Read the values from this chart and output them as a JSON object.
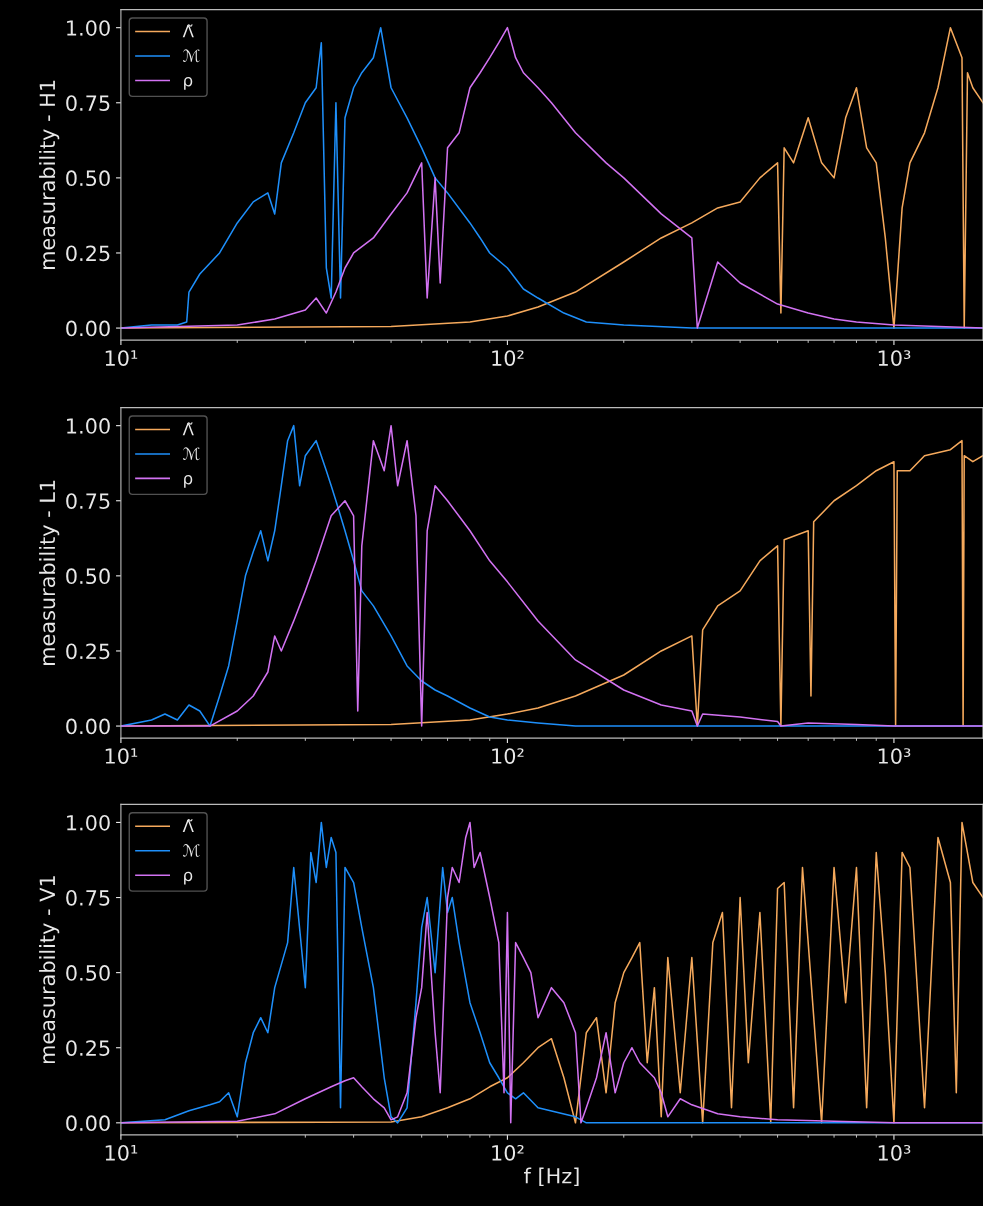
{
  "chart_data": [
    {
      "type": "line",
      "ylabel": "measurability - H1",
      "legend": "top left",
      "log": "x",
      "xlim": [
        10,
        1700
      ],
      "xticks": [
        {
          "value": 10,
          "label": "10¹"
        },
        {
          "value": 100,
          "label": "10²"
        },
        {
          "value": 1000,
          "label": "10³"
        }
      ],
      "ylim": [
        -0.04,
        1.06
      ],
      "yticks": [
        {
          "value": 0,
          "label": "0.00"
        },
        {
          "value": 0.25,
          "label": "0.25"
        },
        {
          "value": 0.5,
          "label": "0.50"
        },
        {
          "value": 0.75,
          "label": "0.75"
        },
        {
          "value": 1,
          "label": "1.00"
        }
      ],
      "series": [
        {
          "name": "Λ̃",
          "color": "#f5a95c",
          "x": [
            10,
            50,
            80,
            100,
            120,
            150,
            200,
            250,
            300,
            350,
            400,
            450,
            500,
            510,
            520,
            550,
            600,
            650,
            700,
            750,
            800,
            850,
            900,
            950,
            1000,
            1050,
            1100,
            1200,
            1300,
            1400,
            1500,
            1520,
            1550,
            1600,
            1700
          ],
          "values": [
            0,
            0.005,
            0.02,
            0.04,
            0.07,
            0.12,
            0.22,
            0.3,
            0.35,
            0.4,
            0.42,
            0.5,
            0.55,
            0.05,
            0.6,
            0.55,
            0.7,
            0.55,
            0.5,
            0.7,
            0.8,
            0.6,
            0.55,
            0.3,
            0,
            0.4,
            0.55,
            0.65,
            0.8,
            1.0,
            0.9,
            0,
            0.85,
            0.8,
            0.75
          ]
        },
        {
          "name": "ℳ",
          "color": "#1e8ffa",
          "x": [
            10,
            12,
            14,
            14.8,
            15,
            16,
            18,
            20,
            22,
            24,
            25,
            26,
            28,
            30,
            32,
            33,
            34,
            35,
            36,
            37,
            38,
            40,
            42,
            45,
            47,
            50,
            55,
            60,
            65,
            70,
            80,
            85,
            90,
            100,
            110,
            120,
            140,
            160,
            200,
            300,
            1700
          ],
          "values": [
            0,
            0.01,
            0.01,
            0.02,
            0.12,
            0.18,
            0.25,
            0.35,
            0.42,
            0.45,
            0.38,
            0.55,
            0.65,
            0.75,
            0.8,
            0.95,
            0.2,
            0.1,
            0.75,
            0.1,
            0.7,
            0.8,
            0.85,
            0.9,
            1.0,
            0.8,
            0.7,
            0.6,
            0.5,
            0.45,
            0.35,
            0.3,
            0.25,
            0.2,
            0.13,
            0.1,
            0.05,
            0.02,
            0.01,
            0,
            0
          ]
        },
        {
          "name": "ρ",
          "color": "#d272f2",
          "x": [
            10,
            20,
            25,
            30,
            32,
            34,
            36,
            38,
            40,
            45,
            50,
            55,
            60,
            62,
            65,
            67,
            70,
            75,
            80,
            85,
            90,
            95,
            100,
            105,
            110,
            120,
            130,
            150,
            180,
            200,
            250,
            300,
            310,
            350,
            400,
            500,
            600,
            700,
            800,
            1000,
            1700
          ],
          "values": [
            0,
            0.01,
            0.03,
            0.06,
            0.1,
            0.05,
            0.12,
            0.2,
            0.25,
            0.3,
            0.38,
            0.45,
            0.55,
            0.1,
            0.5,
            0.15,
            0.6,
            0.65,
            0.8,
            0.85,
            0.9,
            0.95,
            1.0,
            0.9,
            0.85,
            0.8,
            0.75,
            0.65,
            0.55,
            0.5,
            0.38,
            0.3,
            0.0,
            0.22,
            0.15,
            0.08,
            0.05,
            0.03,
            0.02,
            0.01,
            0
          ]
        }
      ]
    },
    {
      "type": "line",
      "ylabel": "measurability - L1",
      "legend": "top left",
      "log": "x",
      "xlim": [
        10,
        1700
      ],
      "xticks": [
        {
          "value": 10,
          "label": "10¹"
        },
        {
          "value": 100,
          "label": "10²"
        },
        {
          "value": 1000,
          "label": "10³"
        }
      ],
      "ylim": [
        -0.04,
        1.06
      ],
      "yticks": [
        {
          "value": 0,
          "label": "0.00"
        },
        {
          "value": 0.25,
          "label": "0.25"
        },
        {
          "value": 0.5,
          "label": "0.50"
        },
        {
          "value": 0.75,
          "label": "0.75"
        },
        {
          "value": 1,
          "label": "1.00"
        }
      ],
      "series": [
        {
          "name": "Λ̃",
          "color": "#f5a95c",
          "x": [
            10,
            50,
            80,
            100,
            120,
            150,
            200,
            250,
            300,
            310,
            320,
            350,
            400,
            450,
            500,
            510,
            520,
            600,
            610,
            620,
            700,
            800,
            900,
            1000,
            1010,
            1020,
            1100,
            1200,
            1400,
            1500,
            1510,
            1520,
            1600,
            1700
          ],
          "values": [
            0,
            0.005,
            0.02,
            0.04,
            0.06,
            0.1,
            0.17,
            0.25,
            0.3,
            0.0,
            0.32,
            0.4,
            0.45,
            0.55,
            0.6,
            0.0,
            0.62,
            0.65,
            0.1,
            0.68,
            0.75,
            0.8,
            0.85,
            0.88,
            0.0,
            0.85,
            0.85,
            0.9,
            0.92,
            0.95,
            0.0,
            0.9,
            0.88,
            0.9
          ]
        },
        {
          "name": "ℳ",
          "color": "#1e8ffa",
          "x": [
            10,
            12,
            13,
            14,
            15,
            16,
            17,
            18,
            19,
            20,
            21,
            22,
            23,
            24,
            25,
            26,
            27,
            28,
            29,
            30,
            32,
            34,
            35,
            36,
            38,
            40,
            42,
            45,
            50,
            55,
            60,
            65,
            70,
            80,
            90,
            100,
            120,
            150,
            1700
          ],
          "values": [
            0,
            0.02,
            0.04,
            0.02,
            0.07,
            0.05,
            0.0,
            0.1,
            0.2,
            0.35,
            0.5,
            0.58,
            0.65,
            0.55,
            0.65,
            0.8,
            0.95,
            1.0,
            0.8,
            0.9,
            0.95,
            0.85,
            0.8,
            0.75,
            0.65,
            0.55,
            0.45,
            0.4,
            0.3,
            0.2,
            0.15,
            0.12,
            0.1,
            0.06,
            0.03,
            0.02,
            0.01,
            0,
            0
          ]
        },
        {
          "name": "ρ",
          "color": "#d272f2",
          "x": [
            10,
            17,
            20,
            22,
            24,
            25,
            26,
            28,
            30,
            32,
            35,
            38,
            40,
            41,
            42,
            45,
            48,
            50,
            52,
            55,
            58,
            60,
            62,
            65,
            70,
            80,
            90,
            100,
            120,
            150,
            200,
            250,
            300,
            310,
            320,
            400,
            500,
            510,
            600,
            800,
            1000,
            1700
          ],
          "values": [
            0,
            0,
            0.05,
            0.1,
            0.18,
            0.3,
            0.25,
            0.35,
            0.45,
            0.55,
            0.7,
            0.75,
            0.7,
            0.05,
            0.6,
            0.95,
            0.85,
            1.0,
            0.8,
            0.95,
            0.7,
            0.0,
            0.65,
            0.8,
            0.75,
            0.65,
            0.55,
            0.48,
            0.35,
            0.22,
            0.12,
            0.07,
            0.05,
            0.0,
            0.04,
            0.03,
            0.015,
            0,
            0.01,
            0.005,
            0,
            0
          ]
        }
      ]
    },
    {
      "type": "line",
      "ylabel": "measurability - V1",
      "xlabel": "f [Hz]",
      "legend": "top left",
      "log": "x",
      "xlim": [
        10,
        1700
      ],
      "xticks": [
        {
          "value": 10,
          "label": "10¹"
        },
        {
          "value": 100,
          "label": "10²"
        },
        {
          "value": 1000,
          "label": "10³"
        }
      ],
      "ylim": [
        -0.04,
        1.06
      ],
      "yticks": [
        {
          "value": 0,
          "label": "0.00"
        },
        {
          "value": 0.25,
          "label": "0.25"
        },
        {
          "value": 0.5,
          "label": "0.50"
        },
        {
          "value": 0.75,
          "label": "0.75"
        },
        {
          "value": 1,
          "label": "1.00"
        }
      ],
      "series": [
        {
          "name": "Λ̃",
          "color": "#f5a95c",
          "x": [
            10,
            50,
            60,
            70,
            80,
            90,
            100,
            110,
            120,
            130,
            140,
            150,
            160,
            170,
            180,
            190,
            200,
            210,
            220,
            230,
            240,
            250,
            260,
            280,
            300,
            320,
            340,
            360,
            380,
            400,
            420,
            450,
            480,
            500,
            520,
            550,
            580,
            600,
            650,
            700,
            750,
            800,
            850,
            900,
            950,
            1000,
            1050,
            1100,
            1200,
            1300,
            1400,
            1450,
            1500,
            1600,
            1700
          ],
          "values": [
            0,
            0.003,
            0.02,
            0.05,
            0.08,
            0.12,
            0.15,
            0.2,
            0.25,
            0.28,
            0.15,
            0.0,
            0.3,
            0.35,
            0.1,
            0.4,
            0.5,
            0.55,
            0.6,
            0.2,
            0.45,
            0.02,
            0.55,
            0.1,
            0.55,
            0.0,
            0.6,
            0.7,
            0.05,
            0.75,
            0.2,
            0.7,
            0.0,
            0.78,
            0.8,
            0.05,
            0.85,
            0.6,
            0.0,
            0.85,
            0.4,
            0.85,
            0.05,
            0.9,
            0.5,
            0.0,
            0.9,
            0.85,
            0.05,
            0.95,
            0.8,
            0.1,
            1.0,
            0.8,
            0.75
          ]
        },
        {
          "name": "ℳ",
          "color": "#1e8ffa",
          "x": [
            10,
            13,
            15,
            17,
            18,
            19,
            20,
            21,
            22,
            23,
            24,
            25,
            27,
            28,
            30,
            31,
            32,
            33,
            34,
            35,
            36,
            37,
            38,
            40,
            42,
            45,
            48,
            50,
            52,
            55,
            58,
            60,
            62,
            65,
            68,
            70,
            72,
            75,
            80,
            85,
            90,
            95,
            100,
            105,
            110,
            120,
            150,
            160,
            1700
          ],
          "values": [
            0,
            0.01,
            0.04,
            0.06,
            0.07,
            0.1,
            0.02,
            0.2,
            0.3,
            0.35,
            0.3,
            0.45,
            0.6,
            0.85,
            0.45,
            0.9,
            0.8,
            1.0,
            0.85,
            0.95,
            0.9,
            0.05,
            0.85,
            0.8,
            0.65,
            0.45,
            0.15,
            0.02,
            0.0,
            0.05,
            0.4,
            0.65,
            0.75,
            0.5,
            0.85,
            0.7,
            0.75,
            0.6,
            0.4,
            0.3,
            0.2,
            0.15,
            0.1,
            0.08,
            0.1,
            0.05,
            0.02,
            0.0,
            0
          ]
        },
        {
          "name": "ρ",
          "color": "#d272f2",
          "x": [
            10,
            20,
            25,
            30,
            35,
            38,
            40,
            42,
            45,
            48,
            50,
            52,
            55,
            58,
            60,
            62,
            65,
            67,
            70,
            72,
            75,
            78,
            80,
            82,
            85,
            90,
            95,
            98,
            100,
            102,
            105,
            110,
            115,
            120,
            130,
            140,
            150,
            155,
            160,
            170,
            180,
            190,
            200,
            210,
            220,
            240,
            250,
            260,
            280,
            300,
            350,
            400,
            500,
            700,
            1000,
            1700
          ],
          "values": [
            0,
            0.005,
            0.03,
            0.08,
            0.12,
            0.14,
            0.15,
            0.12,
            0.08,
            0.05,
            0.01,
            0.02,
            0.1,
            0.35,
            0.45,
            0.7,
            0.3,
            0.1,
            0.75,
            0.85,
            0.8,
            0.95,
            1.0,
            0.85,
            0.9,
            0.75,
            0.6,
            0.1,
            0.7,
            0.0,
            0.6,
            0.55,
            0.5,
            0.35,
            0.45,
            0.4,
            0.3,
            0.0,
            0.05,
            0.15,
            0.3,
            0.1,
            0.2,
            0.25,
            0.2,
            0.15,
            0.1,
            0.02,
            0.08,
            0.06,
            0.03,
            0.02,
            0.01,
            0.005,
            0,
            0
          ]
        }
      ]
    }
  ]
}
